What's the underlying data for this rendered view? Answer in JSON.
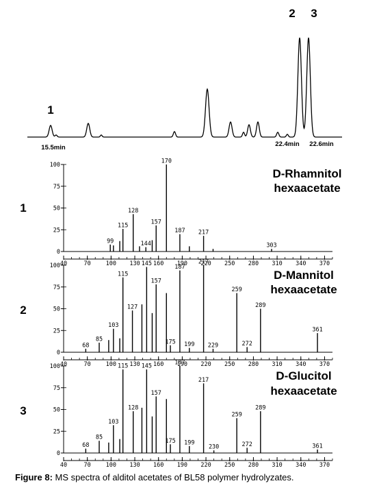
{
  "caption": {
    "lead": "Figure 8:",
    "text": " MS spectra of alditol acetates of BL58 polymer hydrolyzates."
  },
  "chart_data": [
    {
      "type": "line",
      "panel": "chromatogram",
      "peak_labels": [
        {
          "text": "1",
          "rt": "15.5"
        },
        {
          "text": "2",
          "rt": "22.4"
        },
        {
          "text": "3",
          "rt": "22.6"
        }
      ],
      "time_labels": [
        "15.5min",
        "22.4min",
        "22.6min"
      ]
    },
    {
      "type": "bar",
      "panel_number": "1",
      "title_line1": "D-Rhamnitol",
      "title_line2": "hexaacetate",
      "xlim": [
        40,
        380
      ],
      "ylim": [
        0,
        100
      ],
      "x_ticks": [
        40,
        70,
        100,
        130,
        160,
        190,
        220,
        250,
        280,
        310,
        340,
        370
      ],
      "x_tick_labels": [
        "40",
        "70",
        "100",
        "130",
        "160",
        "190",
        "220",
        "250",
        "280",
        "310",
        "340",
        "370"
      ],
      "y_ticks": [
        0,
        25,
        50,
        75,
        100
      ],
      "y_tick_labels": [
        "0",
        "25",
        "50",
        "75",
        "100"
      ],
      "peaks": [
        {
          "mz": 99,
          "i": 8,
          "label": "99"
        },
        {
          "mz": 103,
          "i": 7
        },
        {
          "mz": 111,
          "i": 12
        },
        {
          "mz": 115,
          "i": 26,
          "label": "115"
        },
        {
          "mz": 128,
          "i": 43,
          "label": "128"
        },
        {
          "mz": 136,
          "i": 6
        },
        {
          "mz": 144,
          "i": 5,
          "label": "144"
        },
        {
          "mz": 152,
          "i": 13
        },
        {
          "mz": 157,
          "i": 30,
          "label": "157"
        },
        {
          "mz": 170,
          "i": 100,
          "label": "170"
        },
        {
          "mz": 187,
          "i": 20,
          "label": "187"
        },
        {
          "mz": 199,
          "i": 6
        },
        {
          "mz": 217,
          "i": 18,
          "label": "217"
        },
        {
          "mz": 229,
          "i": 3
        },
        {
          "mz": 303,
          "i": 3,
          "label": "303"
        }
      ]
    },
    {
      "type": "bar",
      "panel_number": "2",
      "title_line1": "D-Mannitol",
      "title_line2": "hexaacetate",
      "xlim": [
        40,
        380
      ],
      "ylim": [
        0,
        100
      ],
      "x_ticks": [
        40,
        70,
        100,
        130,
        160,
        190,
        220,
        250,
        280,
        310,
        340,
        370
      ],
      "x_tick_labels": [
        "40",
        "70",
        "100",
        "130",
        "160",
        "190",
        "220",
        "250",
        "280",
        "310",
        "340",
        "370"
      ],
      "y_ticks": [
        0,
        25,
        50,
        75,
        100
      ],
      "y_tick_labels": [
        "0",
        "25",
        "50",
        "75",
        "100"
      ],
      "peaks": [
        {
          "mz": 68,
          "i": 4,
          "label": "68"
        },
        {
          "mz": 85,
          "i": 11,
          "label": "85"
        },
        {
          "mz": 97,
          "i": 14
        },
        {
          "mz": 103,
          "i": 27,
          "label": "103"
        },
        {
          "mz": 111,
          "i": 16
        },
        {
          "mz": 115,
          "i": 86,
          "label": "115"
        },
        {
          "mz": 127,
          "i": 48,
          "label": "127"
        },
        {
          "mz": 139,
          "i": 55
        },
        {
          "mz": 145,
          "i": 98,
          "label": "145"
        },
        {
          "mz": 152,
          "i": 45
        },
        {
          "mz": 157,
          "i": 78,
          "label": "157"
        },
        {
          "mz": 170,
          "i": 68
        },
        {
          "mz": 175,
          "i": 8,
          "label": "175"
        },
        {
          "mz": 187,
          "i": 94,
          "label": "187"
        },
        {
          "mz": 199,
          "i": 5,
          "label": "199"
        },
        {
          "mz": 217,
          "i": 100,
          "label": "217"
        },
        {
          "mz": 229,
          "i": 4,
          "label": "229"
        },
        {
          "mz": 259,
          "i": 68,
          "label": "259"
        },
        {
          "mz": 272,
          "i": 6,
          "label": "272"
        },
        {
          "mz": 289,
          "i": 50,
          "label": "289"
        },
        {
          "mz": 361,
          "i": 22,
          "label": "361"
        }
      ]
    },
    {
      "type": "bar",
      "panel_number": "3",
      "title_line1": "D-Glucitol",
      "title_line2": "hexaacetate",
      "xlim": [
        40,
        380
      ],
      "ylim": [
        0,
        100
      ],
      "x_ticks": [
        40,
        70,
        100,
        130,
        160,
        190,
        220,
        250,
        280,
        310,
        340,
        370
      ],
      "x_tick_labels": [
        "40",
        "70",
        "100",
        "130",
        "160",
        "190",
        "220",
        "250",
        "280",
        "310",
        "340",
        "370"
      ],
      "y_ticks": [
        0,
        25,
        50,
        75,
        100
      ],
      "y_tick_labels": [
        "0",
        "25",
        "50",
        "75",
        "100"
      ],
      "peaks": [
        {
          "mz": 68,
          "i": 5,
          "label": "68"
        },
        {
          "mz": 85,
          "i": 14,
          "label": "85"
        },
        {
          "mz": 97,
          "i": 12
        },
        {
          "mz": 103,
          "i": 32,
          "label": "103"
        },
        {
          "mz": 111,
          "i": 16
        },
        {
          "mz": 115,
          "i": 96,
          "label": "115"
        },
        {
          "mz": 128,
          "i": 48,
          "label": "128"
        },
        {
          "mz": 139,
          "i": 52
        },
        {
          "mz": 145,
          "i": 96,
          "label": "145"
        },
        {
          "mz": 152,
          "i": 42
        },
        {
          "mz": 157,
          "i": 65,
          "label": "157"
        },
        {
          "mz": 170,
          "i": 62
        },
        {
          "mz": 175,
          "i": 10,
          "label": "175"
        },
        {
          "mz": 187,
          "i": 100,
          "label": "187"
        },
        {
          "mz": 199,
          "i": 8,
          "label": "199"
        },
        {
          "mz": 217,
          "i": 80,
          "label": "217"
        },
        {
          "mz": 230,
          "i": 3,
          "label": "230"
        },
        {
          "mz": 259,
          "i": 40,
          "label": "259"
        },
        {
          "mz": 272,
          "i": 6,
          "label": "272"
        },
        {
          "mz": 289,
          "i": 48,
          "label": "289"
        },
        {
          "mz": 361,
          "i": 4,
          "label": "361"
        }
      ]
    }
  ]
}
